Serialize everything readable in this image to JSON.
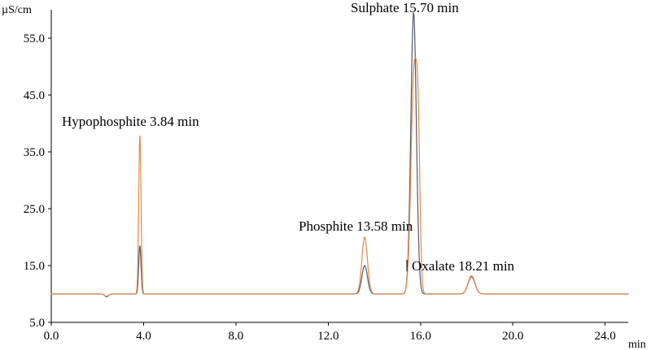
{
  "chart_data": {
    "type": "line",
    "title": "",
    "xlabel": "min",
    "ylabel": "µS/cm",
    "xlim": [
      0,
      25
    ],
    "ylim": [
      5,
      60
    ],
    "x_ticks": [
      0,
      4,
      8,
      12,
      16,
      20,
      24
    ],
    "x_tick_labels": [
      "0.0",
      "4.0",
      "8.0",
      "12.0",
      "16.0",
      "20.0",
      "24.0"
    ],
    "y_ticks": [
      5,
      15,
      25,
      35,
      45,
      55
    ],
    "y_tick_labels": [
      "5.0",
      "15.0",
      "25.0",
      "35.0",
      "45.0",
      "55.0"
    ],
    "grid": false,
    "legend": "none",
    "baseline": 10,
    "series": [
      {
        "color": "#555a66",
        "baseline": 10,
        "peaks": [
          {
            "x": 3.84,
            "y": 18.5,
            "w": 0.05
          },
          {
            "x": 13.58,
            "y": 15.0,
            "w": 0.12
          },
          {
            "x": 15.7,
            "y": 59.5,
            "w": 0.12
          },
          {
            "x": 18.21,
            "y": 13.0,
            "w": 0.15
          }
        ],
        "dips": [
          {
            "x": 2.4,
            "y": -0.5,
            "w": 0.08
          }
        ]
      },
      {
        "color": "#e08a4e",
        "baseline": 10,
        "peaks": [
          {
            "x": 3.84,
            "y": 38.0,
            "w": 0.05
          },
          {
            "x": 13.58,
            "y": 20.0,
            "w": 0.12
          },
          {
            "x": 15.72,
            "y": 49.0,
            "w": 0.13
          },
          {
            "x": 15.9,
            "y": 30.0,
            "w": 0.08
          },
          {
            "x": 18.21,
            "y": 13.2,
            "w": 0.15
          }
        ],
        "dips": [
          {
            "x": 2.4,
            "y": -0.4,
            "w": 0.08
          }
        ]
      }
    ],
    "annotations": [
      {
        "id": "hypophosphite",
        "text": "Hypophosphite 3.84 min",
        "x": 3.84,
        "y": 38.0
      },
      {
        "id": "phosphite",
        "text": "Phosphite 13.58 min",
        "x": 13.58,
        "y": 20.0
      },
      {
        "id": "sulphate",
        "text": "Sulphate 15.70 min",
        "x": 15.7,
        "y": 59.5
      },
      {
        "id": "oxalate",
        "text": "Oxalate 18.21 min",
        "x": 18.21,
        "y": 13.0
      }
    ]
  }
}
